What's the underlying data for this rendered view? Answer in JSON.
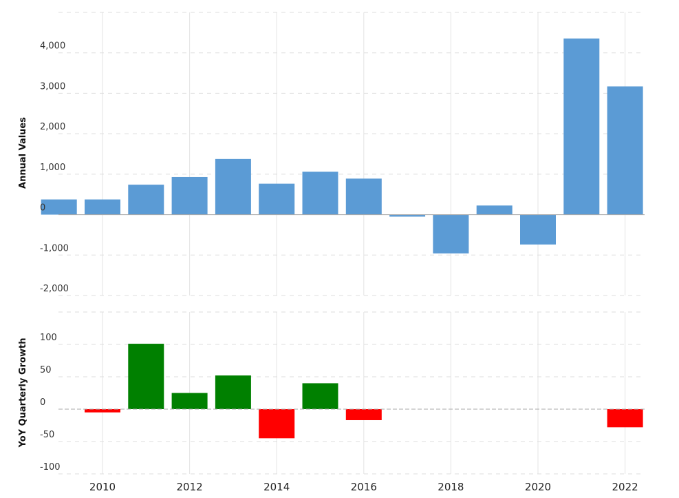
{
  "chart_data": [
    {
      "type": "bar",
      "ylabel": "Annual Values",
      "ylim": [
        -2000,
        5000
      ],
      "yticks": [
        -2000,
        -1000,
        0,
        1000,
        2000,
        3000,
        4000
      ],
      "ytick_labels": [
        "-2,000",
        "-1,000",
        "0",
        "1,000",
        "2,000",
        "3,000",
        "4,000"
      ],
      "x": [
        2009,
        2010,
        2011,
        2012,
        2013,
        2014,
        2015,
        2016,
        2017,
        2018,
        2019,
        2020,
        2021,
        2022
      ],
      "values": [
        375,
        375,
        740,
        930,
        1375,
        765,
        1060,
        890,
        -50,
        -960,
        225,
        -740,
        4355,
        3170
      ],
      "color": "#5b9bd5",
      "grid": true
    },
    {
      "type": "bar",
      "ylabel": "YoY Quarterly Growth",
      "ylim": [
        -100,
        150
      ],
      "yticks": [
        -100,
        -50,
        0,
        50,
        100
      ],
      "ytick_labels": [
        "-100",
        "-50",
        "0",
        "50",
        "100"
      ],
      "x": [
        2010,
        2011,
        2012,
        2013,
        2014,
        2015,
        2016,
        2022
      ],
      "values": [
        -5,
        101,
        25,
        52,
        -45,
        40,
        -17,
        -28
      ],
      "positive_color": "#008000",
      "negative_color": "#ff0000",
      "grid": true
    }
  ],
  "x_axis": {
    "tick_labels": [
      "2010",
      "2012",
      "2014",
      "2016",
      "2018",
      "2020",
      "2022"
    ],
    "tick_years": [
      2010,
      2012,
      2014,
      2016,
      2018,
      2020,
      2022
    ]
  }
}
